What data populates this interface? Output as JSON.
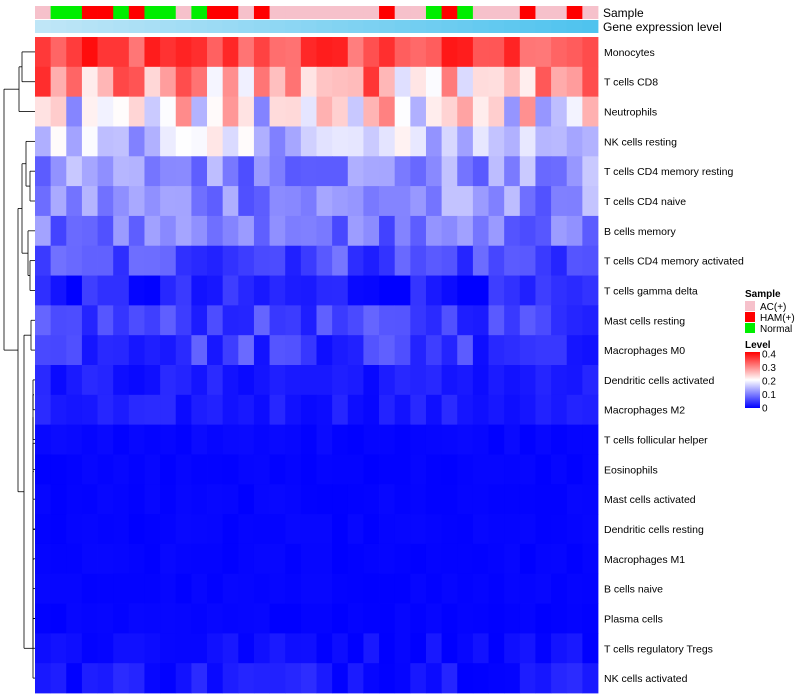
{
  "chart_data": {
    "type": "heatmap",
    "title": "",
    "annotation_tracks": [
      "Sample",
      "Gene expression level"
    ],
    "rows": [
      "Monocytes",
      "T cells CD8",
      "Neutrophils",
      "NK cells resting",
      "T cells CD4 memory resting",
      "T cells CD4 naive",
      "B cells memory",
      "T cells CD4 memory activated",
      "T cells gamma delta",
      "Mast cells resting",
      "Macrophages M0",
      "Dendritic cells activated",
      "Macrophages M2",
      "T cells follicular helper",
      "Eosinophils",
      "Mast cells activated",
      "Dendritic cells resting",
      "Macrophages M1",
      "B cells naive",
      "Plasma cells",
      "T cells regulatory  Tregs",
      "NK cells activated"
    ],
    "samples": [
      "AC",
      "Normal",
      "Normal",
      "HAM",
      "HAM",
      "Normal",
      "HAM",
      "Normal",
      "Normal",
      "AC",
      "Normal",
      "HAM",
      "HAM",
      "AC",
      "HAM",
      "AC",
      "AC",
      "AC",
      "AC",
      "AC",
      "AC",
      "AC",
      "HAM",
      "AC",
      "AC",
      "Normal",
      "HAM",
      "Normal",
      "AC",
      "AC",
      "AC",
      "HAM",
      "AC",
      "AC",
      "HAM",
      "AC"
    ],
    "sample_colors": {
      "AC": "#f6c1cb",
      "HAM": "#ff0000",
      "Normal": "#00ee00"
    },
    "expression_gradient": [
      "#bfe6f7",
      "#4fc3ee"
    ],
    "color_scale": {
      "min": 0,
      "max": 0.4,
      "colors": [
        "#0000ff",
        "#ffffff",
        "#ff0000"
      ]
    },
    "legend_sample_title": "Sample",
    "legend_sample_entries": [
      {
        "label": "AC(+)",
        "color": "#f6c1cb"
      },
      {
        "label": "HAM(+)",
        "color": "#ff0000"
      },
      {
        "label": "Normal",
        "color": "#00ee00"
      }
    ],
    "legend_level_title": "Level",
    "legend_level_ticks": [
      "0.4",
      "0.3",
      "0.2",
      "0.1",
      "0"
    ],
    "row_means": [
      0.34,
      0.27,
      0.2,
      0.16,
      0.11,
      0.11,
      0.09,
      0.06,
      0.02,
      0.05,
      0.05,
      0.02,
      0.02,
      0.005,
      0.003,
      0.003,
      0.003,
      0.003,
      0.003,
      0.003,
      0.01,
      0.02
    ],
    "row_spread": [
      0.05,
      0.1,
      0.1,
      0.06,
      0.05,
      0.05,
      0.04,
      0.04,
      0.03,
      0.03,
      0.04,
      0.015,
      0.015,
      0.004,
      0.003,
      0.003,
      0.003,
      0.003,
      0.003,
      0.003,
      0.012,
      0.02
    ]
  }
}
